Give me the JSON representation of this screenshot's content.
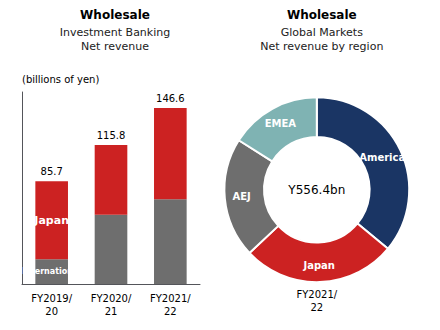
{
  "chart_data": [
    {
      "type": "bar",
      "title": "Wholesale",
      "subtitle": "Investment Banking\nNet revenue",
      "ylabel": "(billions of yen)",
      "categories": [
        "FY2019/\n20",
        "FY2020/\n21",
        "FY2021/\n22"
      ],
      "series": [
        {
          "name": "International",
          "color": "#6e6e6e",
          "values": [
            20.7,
            57.8,
            70.6
          ]
        },
        {
          "name": "Japan",
          "color": "#cc2222",
          "values": [
            65.0,
            58.0,
            76.0
          ]
        }
      ],
      "totals": [
        85.7,
        115.8,
        146.6
      ],
      "stacked": true,
      "ylim": [
        0,
        160
      ],
      "yticks": [],
      "tick_labels": "x",
      "grid": false
    },
    {
      "type": "pie",
      "title": "Wholesale",
      "subtitle": "Global Markets\nNet revenue by region",
      "categories": [
        "Americas",
        "Japan",
        "AEJ",
        "EMEA"
      ],
      "values": [
        36,
        27,
        21,
        16
      ],
      "colors": [
        "#1a3564",
        "#cc2222",
        "#6e6e6e",
        "#7fb3b3"
      ],
      "annotations": [
        "Y556.4bn",
        "FY2021/\n22"
      ]
    }
  ]
}
